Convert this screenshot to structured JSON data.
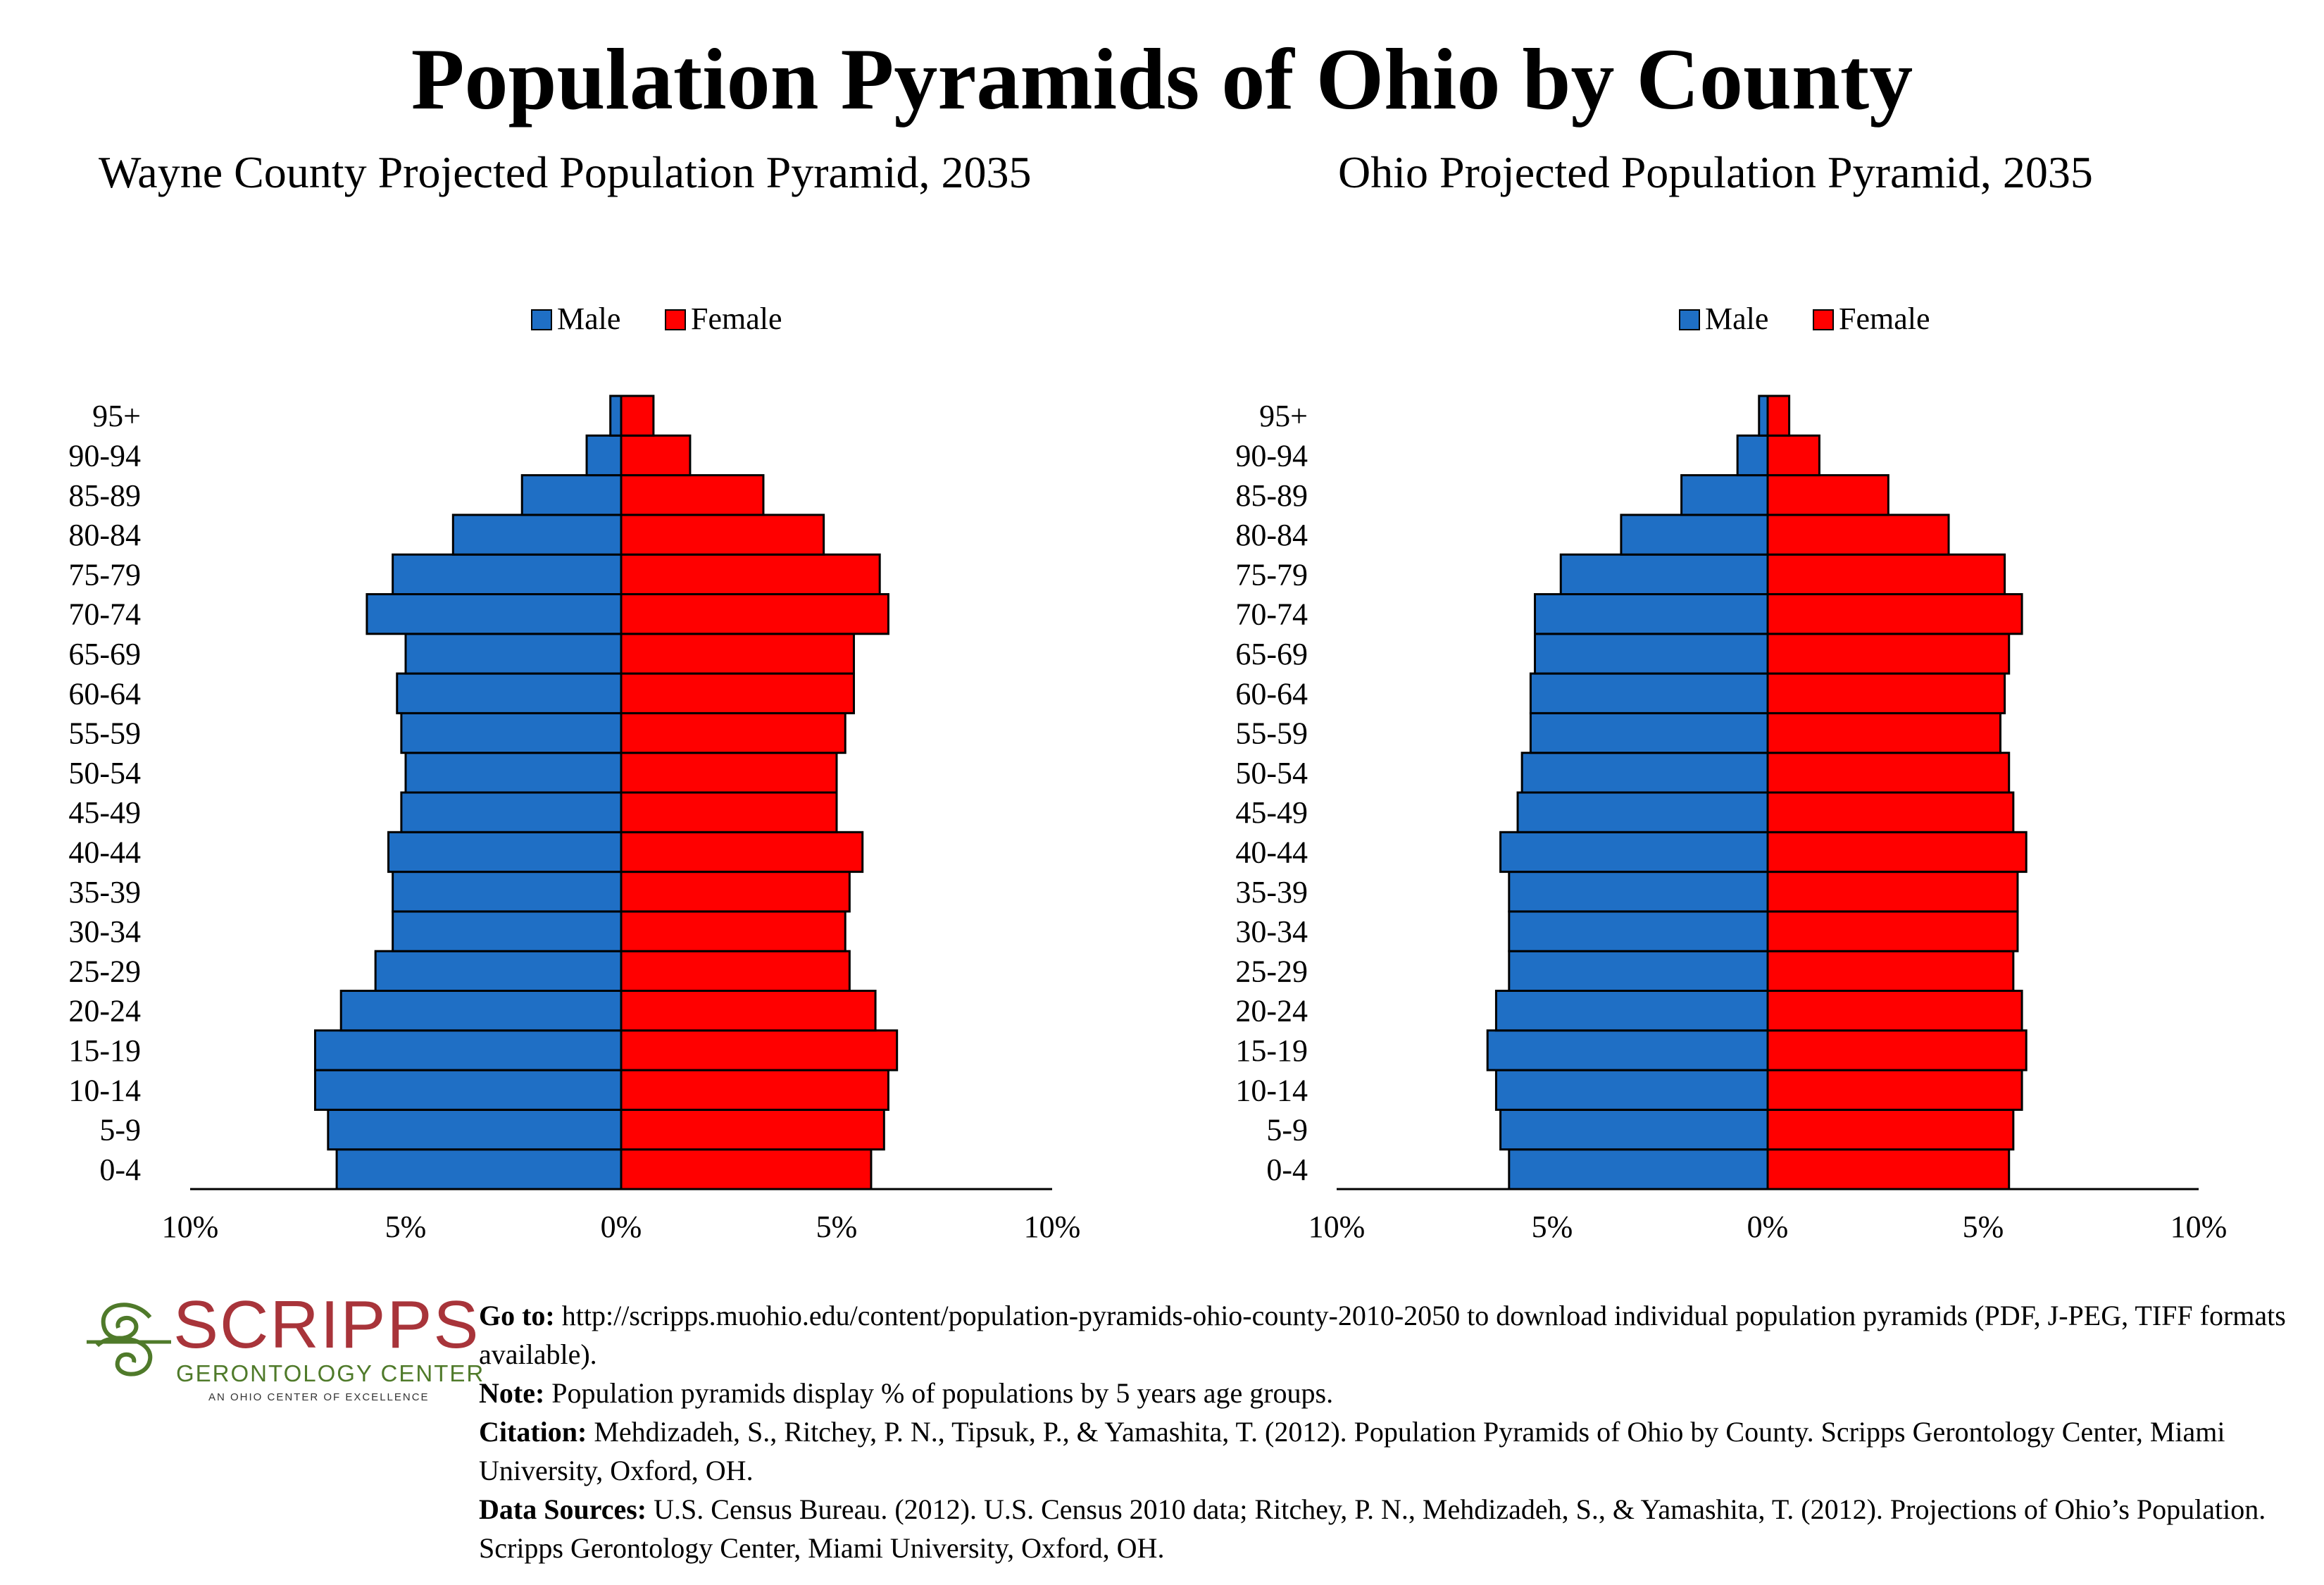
{
  "title": "Population Pyramids of Ohio by County",
  "legend": {
    "male": "Male",
    "female": "Female"
  },
  "colors": {
    "male": "#1f6fc5",
    "female": "#ff0000",
    "outline": "#000000"
  },
  "age_groups": [
    "0-4",
    "5-9",
    "10-14",
    "15-19",
    "20-24",
    "25-29",
    "30-34",
    "35-39",
    "40-44",
    "45-49",
    "50-54",
    "55-59",
    "60-64",
    "65-69",
    "70-74",
    "75-79",
    "80-84",
    "85-89",
    "90-94",
    "95+"
  ],
  "x_tick_labels": [
    "10%",
    "5%",
    "0%",
    "5%",
    "10%"
  ],
  "chart_data": [
    {
      "type": "bar",
      "title": "Wayne County Projected Population Pyramid, 2035",
      "orientation": "horizontal-pyramid",
      "xlim": [
        -10,
        10
      ],
      "categories": [
        "0-4",
        "5-9",
        "10-14",
        "15-19",
        "20-24",
        "25-29",
        "30-34",
        "35-39",
        "40-44",
        "45-49",
        "50-54",
        "55-59",
        "60-64",
        "65-69",
        "70-74",
        "75-79",
        "80-84",
        "85-89",
        "90-94",
        "95+"
      ],
      "series": [
        {
          "name": "Male",
          "values": [
            6.6,
            6.8,
            7.1,
            7.1,
            6.5,
            5.7,
            5.3,
            5.3,
            5.4,
            5.1,
            5.0,
            5.1,
            5.2,
            5.0,
            5.9,
            5.3,
            3.9,
            2.3,
            0.8,
            0.25
          ]
        },
        {
          "name": "Female",
          "values": [
            5.8,
            6.1,
            6.2,
            6.4,
            5.9,
            5.3,
            5.2,
            5.3,
            5.6,
            5.0,
            5.0,
            5.2,
            5.4,
            5.4,
            6.2,
            6.0,
            4.7,
            3.3,
            1.6,
            0.75
          ]
        }
      ],
      "legend_position": "top-center"
    },
    {
      "type": "bar",
      "title": "Ohio Projected Population Pyramid, 2035",
      "orientation": "horizontal-pyramid",
      "xlim": [
        -10,
        10
      ],
      "categories": [
        "0-4",
        "5-9",
        "10-14",
        "15-19",
        "20-24",
        "25-29",
        "30-34",
        "35-39",
        "40-44",
        "45-49",
        "50-54",
        "55-59",
        "60-64",
        "65-69",
        "70-74",
        "75-79",
        "80-84",
        "85-89",
        "90-94",
        "95+"
      ],
      "series": [
        {
          "name": "Male",
          "values": [
            6.0,
            6.2,
            6.3,
            6.5,
            6.3,
            6.0,
            6.0,
            6.0,
            6.2,
            5.8,
            5.7,
            5.5,
            5.5,
            5.4,
            5.4,
            4.8,
            3.4,
            2.0,
            0.7,
            0.2
          ]
        },
        {
          "name": "Female",
          "values": [
            5.6,
            5.7,
            5.9,
            6.0,
            5.9,
            5.7,
            5.8,
            5.8,
            6.0,
            5.7,
            5.6,
            5.4,
            5.5,
            5.6,
            5.9,
            5.5,
            4.2,
            2.8,
            1.2,
            0.5
          ]
        }
      ],
      "legend_position": "top-center"
    }
  ],
  "logo": {
    "name": "SCRIPPS",
    "subtitle": "GERONTOLOGY CENTER",
    "tagline": "AN OHIO CENTER OF EXCELLENCE"
  },
  "notes": {
    "goto_label": "Go to:",
    "goto_text": " http://scripps.muohio.edu/content/population-pyramids-ohio-county-2010-2050 to download individual population pyramids (PDF, J-PEG, TIFF formats available).",
    "note_label": "Note:",
    "note_text": " Population pyramids display % of populations by 5 years age groups.",
    "citation_label": "Citation:",
    "citation_text": " Mehdizadeh, S., Ritchey, P. N., Tipsuk, P., & Yamashita, T. (2012). Population Pyramids of Ohio by County. Scripps Gerontology Center, Miami University, Oxford, OH.",
    "sources_label": "Data Sources:",
    "sources_text": " U.S. Census Bureau. (2012). U.S. Census 2010 data; Ritchey, P. N., Mehdizadeh, S., & Yamashita, T. (2012). Projections of Ohio’s Population. Scripps Gerontology Center, Miami University, Oxford, OH."
  }
}
